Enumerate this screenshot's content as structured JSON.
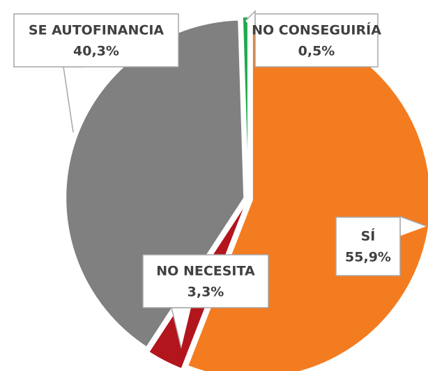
{
  "chart_data": {
    "type": "pie",
    "categories": [
      "SÍ",
      "NO NECESITA",
      "SE AUTOFINANCIA",
      "NO CONSEGUIRÍA"
    ],
    "values": [
      55.9,
      3.3,
      40.3,
      0.5
    ],
    "value_labels": [
      "55,9%",
      "3,3%",
      "40,3%",
      "0,5%"
    ],
    "colors": [
      "#f47c20",
      "#b3151d",
      "#808080",
      "#21a84e"
    ]
  }
}
